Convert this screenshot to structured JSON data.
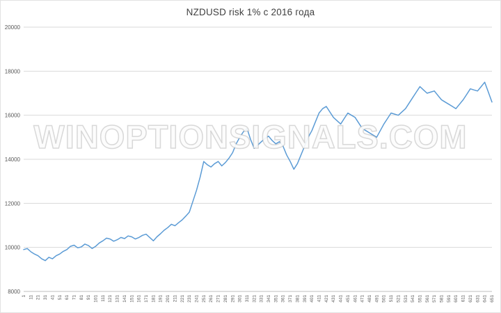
{
  "chart_data": {
    "type": "line",
    "title": "NZDUSD risk 1% с 2016 года",
    "series_color": "#5B9BD5",
    "grid": "horizontal-only",
    "legend": "none",
    "ylim": [
      8000,
      20000
    ],
    "y_ticks": [
      8000,
      10000,
      12000,
      14000,
      16000,
      18000,
      20000
    ],
    "x_range": [
      1,
      651
    ],
    "x_start": 1,
    "x_step": 5,
    "x_tick_start": 1,
    "x_tick_step": 10,
    "x_tick_labels": [
      "1",
      "11",
      "21",
      "31",
      "41",
      "51",
      "61",
      "71",
      "81",
      "91",
      "101",
      "111",
      "121",
      "131",
      "141",
      "151",
      "161",
      "171",
      "181",
      "191",
      "201",
      "211",
      "221",
      "231",
      "241",
      "251",
      "261",
      "271",
      "281",
      "291",
      "301",
      "311",
      "321",
      "331",
      "341",
      "351",
      "361",
      "371",
      "381",
      "391",
      "401",
      "411",
      "421",
      "431",
      "441",
      "451",
      "461",
      "471",
      "481",
      "491",
      "501",
      "511",
      "521",
      "531",
      "541",
      "551",
      "561",
      "571",
      "581",
      "591",
      "601",
      "611",
      "621",
      "631",
      "641",
      "651"
    ],
    "values": [
      9900,
      9950,
      9800,
      9700,
      9620,
      9480,
      9400,
      9550,
      9480,
      9620,
      9700,
      9820,
      9900,
      10050,
      10100,
      9980,
      10020,
      10150,
      10080,
      9950,
      10050,
      10200,
      10300,
      10420,
      10380,
      10280,
      10350,
      10450,
      10400,
      10520,
      10480,
      10380,
      10450,
      10550,
      10600,
      10450,
      10300,
      10480,
      10620,
      10780,
      10900,
      11050,
      10980,
      11120,
      11250,
      11420,
      11600,
      12100,
      12600,
      13200,
      13900,
      13750,
      13650,
      13800,
      13900,
      13700,
      13850,
      14050,
      14300,
      14700,
      15000,
      15250,
      15400,
      14900,
      14500,
      14650,
      14800,
      14950,
      15050,
      14850,
      14700,
      14800,
      14600,
      14200,
      13900,
      13550,
      13800,
      14200,
      14600,
      15000,
      15300,
      15700,
      16100,
      16300,
      16400,
      16150,
      15900,
      15750,
      15600,
      15850,
      16100,
      16000,
      15900,
      15650,
      15400,
      15300,
      15200,
      15100,
      15000,
      15300,
      15600,
      15850,
      16100,
      16050,
      16000,
      16150,
      16300,
      16550,
      16800,
      17050,
      17300,
      17150,
      17000,
      17050,
      17100,
      16900,
      16700,
      16600,
      16500,
      16400,
      16300,
      16500,
      16700,
      16950,
      17200,
      17150,
      17100,
      17300,
      17500,
      17050,
      16600
    ]
  },
  "watermark": {
    "text": "WINOPTIONSIGNALS.COM"
  }
}
